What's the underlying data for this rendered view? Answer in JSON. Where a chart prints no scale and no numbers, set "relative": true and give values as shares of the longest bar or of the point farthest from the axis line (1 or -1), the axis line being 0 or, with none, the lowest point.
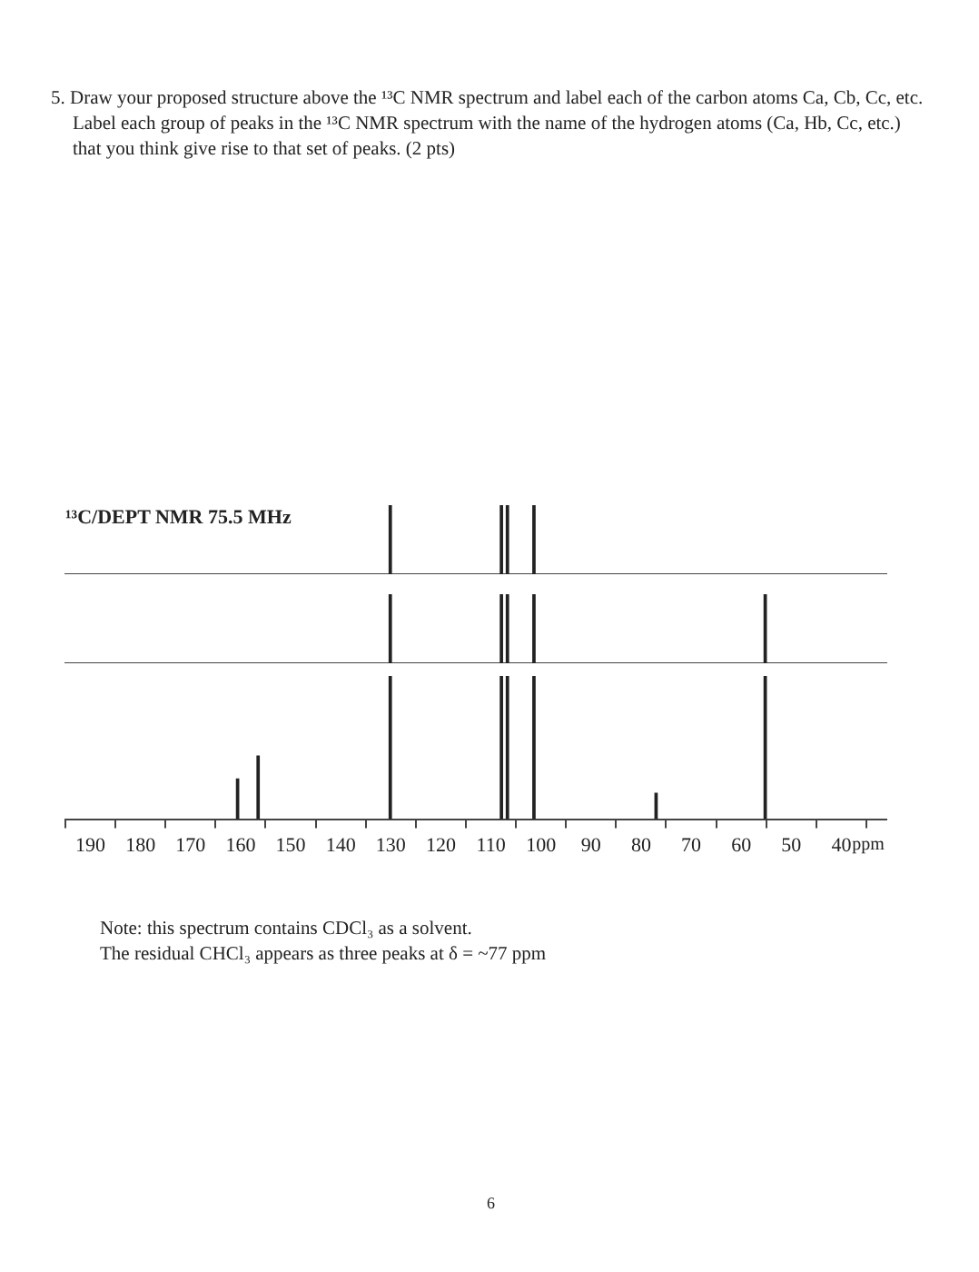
{
  "chart_data": [
    {
      "type": "bar",
      "title": "¹³C/DEPT NMR 75.5 MHz",
      "relative": true,
      "color": "#222222",
      "x": [
        130.1,
        107.9,
        106.7,
        101.4
      ],
      "values": [
        1,
        1,
        1,
        1
      ],
      "xlim": [
        195,
        31
      ],
      "tick_labels": false,
      "annotations": [
        "5. Draw your proposed structure above the ¹³C NMR spectrum and label each of the carbon atoms Ca, Cb, Cc, etc. Label each group of peaks in the ¹³C NMR spectrum with the name of the hydrogen atoms (Ca, Hb, Cc, etc.) that you think give rise to that set of peaks. (2 pts)"
      ]
    },
    {
      "type": "bar",
      "relative": true,
      "color": "#222222",
      "x": [
        130.1,
        107.9,
        106.7,
        101.4,
        55.2
      ],
      "values": [
        1,
        1,
        1,
        1,
        1
      ],
      "xlim": [
        195,
        31
      ],
      "tick_labels": false
    },
    {
      "type": "bar",
      "relative": true,
      "color": "#222222",
      "x": [
        160.6,
        156.5,
        130.1,
        107.9,
        106.7,
        101.4,
        77.0,
        55.2
      ],
      "values": [
        0.28,
        0.44,
        1,
        1,
        1,
        1,
        0.18,
        1
      ],
      "xlim": [
        195,
        31
      ],
      "xticks": [
        190,
        180,
        170,
        160,
        150,
        140,
        130,
        120,
        110,
        100,
        90,
        80,
        70,
        60,
        50,
        40
      ],
      "xlabel": "ppm",
      "tick_labels": "x",
      "annotations": [
        "Note: this spectrum contains CDCl₃ as a solvent.",
        "The residual CHCl₃ appears as three peaks at δ = ~77 ppm",
        "6"
      ]
    }
  ]
}
